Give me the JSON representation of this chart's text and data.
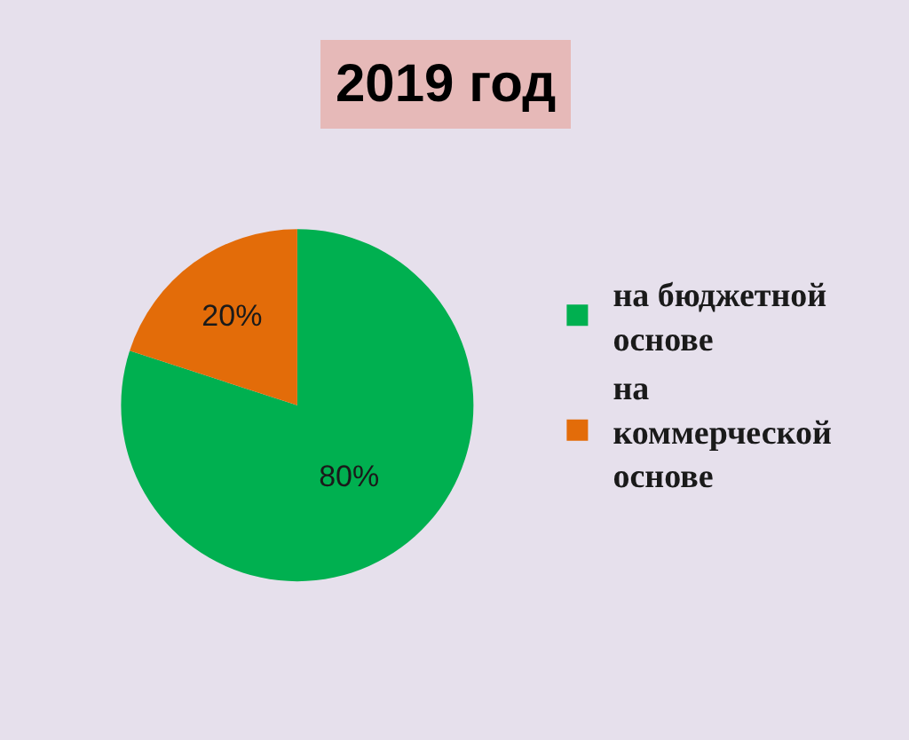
{
  "chart_data": {
    "type": "pie",
    "title": "2019 год",
    "categories": [
      "на бюджетной основе",
      "на коммерческой основе"
    ],
    "values": [
      80,
      20
    ],
    "colors": [
      "#00b050",
      "#e36c09"
    ],
    "value_labels": [
      "80%",
      "20%"
    ],
    "legend": "right"
  }
}
